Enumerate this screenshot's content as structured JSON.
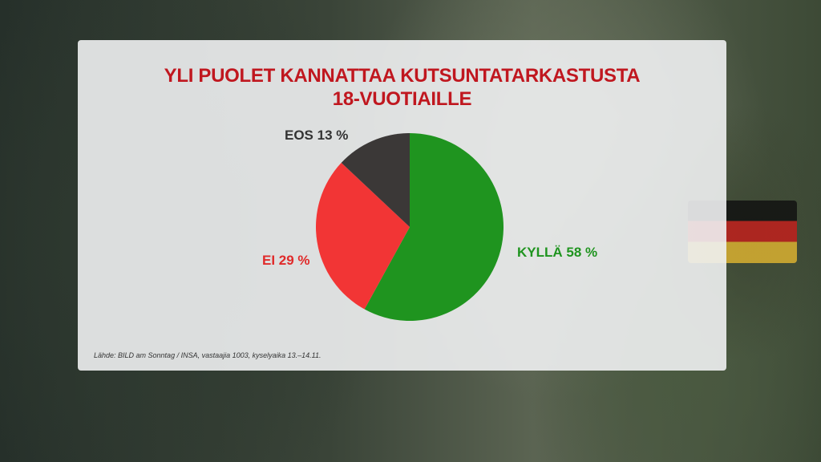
{
  "chart_data": {
    "type": "pie",
    "title": "YLI PUOLET KANNATTAA KUTSUNTATARKASTUSTA 18-VUOTIAILLE",
    "title_lines": [
      "YLI PUOLET KANNATTAA KUTSUNTATARKASTUSTA",
      "18-VUOTIAILLE"
    ],
    "slices": [
      {
        "label": "KYLLÄ 58 %",
        "category": "KYLLÄ",
        "value": 58,
        "color": "#1f941f"
      },
      {
        "label": "EI 29 %",
        "category": "EI",
        "value": 29,
        "color": "#f23535"
      },
      {
        "label": "EOS 13 %",
        "category": "EOS",
        "value": 13,
        "color": "#3b3837"
      }
    ],
    "start": "top",
    "direction": "clockwise",
    "source": "Lähde: BILD am Sonntag / INSA, vastaajia 1003, kyselyaika 13.–14.11."
  }
}
